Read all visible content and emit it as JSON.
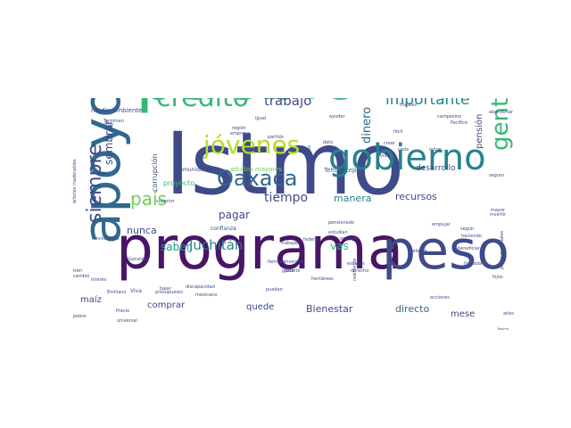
{
  "palette": {
    "dark_purple": "#481567",
    "indigo": "#3e4a89",
    "steel": "#31688e",
    "teal": "#26828e",
    "green_teal": "#1f9e89",
    "green": "#35b779",
    "light_green": "#6ece58",
    "lime": "#b5de2b",
    "yellow": "#fde725"
  },
  "words": [
    {
      "text": "Istmo",
      "color": "#3e4a89",
      "weight": 100
    },
    {
      "text": "pueblo",
      "color": "#35b779",
      "weight": 78
    },
    {
      "text": "programa",
      "color": "#481567",
      "weight": 70
    },
    {
      "text": "apoyo",
      "color": "#31688e",
      "weight": 66
    },
    {
      "text": "peso",
      "color": "#3e4a89",
      "weight": 64
    },
    {
      "text": "gobierno",
      "color": "#26828e",
      "weight": 42
    },
    {
      "text": "crédito",
      "color": "#35b779",
      "weight": 30
    },
    {
      "text": "jóvenes",
      "color": "#b5de2b",
      "weight": 30
    },
    {
      "text": "gente",
      "color": "#35b779",
      "weight": 26
    },
    {
      "text": "Oaxaca",
      "color": "#31688e",
      "weight": 24
    },
    {
      "text": "siempre",
      "color": "#3e4a89",
      "weight": 22
    },
    {
      "text": "país",
      "color": "#6ece58",
      "weight": 20
    },
    {
      "text": "importante",
      "color": "#26828e",
      "weight": 18
    },
    {
      "text": "trabajo",
      "color": "#3e4a89",
      "weight": 16
    },
    {
      "text": "Juchitán",
      "color": "#26828e",
      "weight": 16
    },
    {
      "text": "tiempo",
      "color": "#3e4a89",
      "weight": 14
    },
    {
      "text": "sembrar",
      "color": "#3e4a89",
      "weight": 12
    },
    {
      "text": "dinero",
      "color": "#31688e",
      "weight": 13
    },
    {
      "text": "saben",
      "color": "#1f9e89",
      "weight": 12
    },
    {
      "text": "pagar",
      "color": "#3e4a89",
      "weight": 12
    },
    {
      "text": "vas",
      "color": "#35b779",
      "weight": 12
    },
    {
      "text": "nunca",
      "color": "#3e4a89",
      "weight": 11
    },
    {
      "text": "manera",
      "color": "#26828e",
      "weight": 11
    },
    {
      "text": "recursos",
      "color": "#3e4a89",
      "weight": 11
    },
    {
      "text": "Bienestar",
      "color": "#3e4a89",
      "weight": 11
    },
    {
      "text": "directo",
      "color": "#31688e",
      "weight": 11
    },
    {
      "text": "maíz",
      "color": "#3e4a89",
      "weight": 10
    },
    {
      "text": "comprar",
      "color": "#3e4a89",
      "weight": 10
    },
    {
      "text": "quede",
      "color": "#3e4a89",
      "weight": 10
    },
    {
      "text": "pensión",
      "color": "#3e4a89",
      "weight": 10
    },
    {
      "text": "mese",
      "color": "#3e4a89",
      "weight": 10
    },
    {
      "text": "desarrollo",
      "color": "#3e4a89",
      "weight": 9
    },
    {
      "text": "corrupción",
      "color": "#3e4a89",
      "weight": 8
    },
    {
      "text": "proyecto",
      "color": "#35b779",
      "weight": 8
    },
    {
      "text": "Tehuantepec",
      "color": "#31688e",
      "weight": 7
    },
    {
      "text": "adultos mayores",
      "color": "#6ece58",
      "weight": 7
    },
    {
      "text": "medio ambiente",
      "color": "#3e4a89",
      "weight": 7
    },
    {
      "text": "comunidades",
      "color": "#3e4a89",
      "weight": 6
    },
    {
      "text": "confianza",
      "color": "#3e4a89",
      "weight": 6
    },
    {
      "text": "Viva",
      "color": "#3e4a89",
      "weight": 6
    },
    {
      "text": "Precio",
      "color": "#3e4a89",
      "weight": 5
    },
    {
      "text": "pobre",
      "color": "#3e4a89",
      "weight": 5
    },
    {
      "text": "puedan",
      "color": "#3e4a89",
      "weight": 5
    },
    {
      "text": "estudian",
      "color": "#3e4a89",
      "weight": 5
    },
    {
      "text": "seguir",
      "color": "#3e4a89",
      "weight": 5
    },
    {
      "text": "haciendo",
      "color": "#3e4a89",
      "weight": 4
    },
    {
      "text": "vida",
      "color": "#3e4a89",
      "weight": 4
    },
    {
      "text": "niños",
      "color": "#3e4a89",
      "weight": 4
    },
    {
      "text": "ayuder",
      "color": "#3e4a89",
      "weight": 4
    },
    {
      "text": "dato",
      "color": "#3e4a89",
      "weight": 4
    },
    {
      "text": "crear",
      "color": "#3e4a89",
      "weight": 4
    },
    {
      "text": "cada",
      "color": "#3e4a89",
      "weight": 4
    },
    {
      "text": "Garantía",
      "color": "#3e4a89",
      "weight": 4
    },
    {
      "text": "gusto",
      "color": "#3e4a89",
      "weight": 4
    },
    {
      "text": "trabajar",
      "color": "#3e4a89",
      "weight": 4
    },
    {
      "text": "Terminan",
      "color": "#3e4a89",
      "weight": 3
    },
    {
      "text": "digo",
      "color": "#3e4a89",
      "weight": 3
    },
    {
      "text": "mexicano",
      "color": "#3e4a89",
      "weight": 3
    },
    {
      "text": "discapacidad",
      "color": "#3e4a89",
      "weight": 3
    },
    {
      "text": "pensionado",
      "color": "#3e4a89",
      "weight": 3
    },
    {
      "text": "hectáreas",
      "color": "#3e4a89",
      "weight": 3
    },
    {
      "text": "entregar",
      "color": "#3e4a89",
      "weight": 3
    },
    {
      "text": "elefante",
      "color": "#3e4a89",
      "weight": 3
    },
    {
      "text": "presupuesto",
      "color": "#3e4a89",
      "weight": 3
    },
    {
      "text": "bajar",
      "color": "#3e4a89",
      "weight": 3
    },
    {
      "text": "tren",
      "color": "#3e4a89",
      "weight": 3
    },
    {
      "text": "interés",
      "color": "#3e4a89",
      "weight": 3
    },
    {
      "text": "frutales",
      "color": "#3e4a89",
      "weight": 3
    },
    {
      "text": "escasos",
      "color": "#3e4a89",
      "weight": 2
    },
    {
      "text": "familias",
      "color": "#3e4a89",
      "weight": 2
    },
    {
      "text": "inversión",
      "color": "#3e4a89",
      "weight": 2
    },
    {
      "text": "federal",
      "color": "#3e4a89",
      "weight": 2
    },
    {
      "text": "puerto",
      "color": "#3e4a89",
      "weight": 2
    },
    {
      "text": "derecho",
      "color": "#3e4a89",
      "weight": 2
    },
    {
      "text": "empujar",
      "color": "#3e4a89",
      "weight": 2
    },
    {
      "text": "realmente",
      "color": "#3e4a89",
      "weight": 2
    },
    {
      "text": "pesos mensuales",
      "color": "#3e4a89",
      "weight": 2
    },
    {
      "text": "acciones",
      "color": "#3e4a89",
      "weight": 2
    },
    {
      "text": "hijos",
      "color": "#3e4a89",
      "weight": 2
    },
    {
      "text": "beca",
      "color": "#3e4a89",
      "weight": 2
    },
    {
      "text": "años",
      "color": "#3e4a89",
      "weight": 2
    },
    {
      "text": "árboles maderables",
      "color": "#3e4a89",
      "weight": 2
    },
    {
      "text": "millones",
      "color": "#3e4a89",
      "weight": 2
    },
    {
      "text": "campesino",
      "color": "#3e4a89",
      "weight": 2
    },
    {
      "text": "Pacífico",
      "color": "#3e4a89",
      "weight": 2
    },
    {
      "text": "abandonar",
      "color": "#3e4a89",
      "weight": 2
    },
    {
      "text": "llamada",
      "color": "#3e4a89",
      "weight": 2
    },
    {
      "text": "beneficiar",
      "color": "#3e4a89",
      "weight": 2
    },
    {
      "text": "universal",
      "color": "#3e4a89",
      "weight": 2
    },
    {
      "text": "región",
      "color": "#3e4a89",
      "weight": 2
    },
    {
      "text": "empresa",
      "color": "#3e4a89",
      "weight": 2
    },
    {
      "text": "partido",
      "color": "#3e4a89",
      "weight": 2
    },
    {
      "text": "igual",
      "color": "#3e4a89",
      "weight": 2
    },
    {
      "text": "Emiliano",
      "color": "#3e4a89",
      "weight": 2
    },
    {
      "text": "seguro",
      "color": "#3e4a89",
      "weight": 2
    },
    {
      "text": "superior",
      "color": "#3e4a89",
      "weight": 2
    },
    {
      "text": "funcionarios",
      "color": "#3e4a89",
      "weight": 2
    },
    {
      "text": "fácil",
      "color": "#3e4a89",
      "weight": 2
    },
    {
      "text": "cambio",
      "color": "#3e4a89",
      "weight": 2
    },
    {
      "text": "mayor",
      "color": "#3e4a89",
      "weight": 2
    },
    {
      "text": "invertir",
      "color": "#3e4a89",
      "weight": 2
    }
  ]
}
